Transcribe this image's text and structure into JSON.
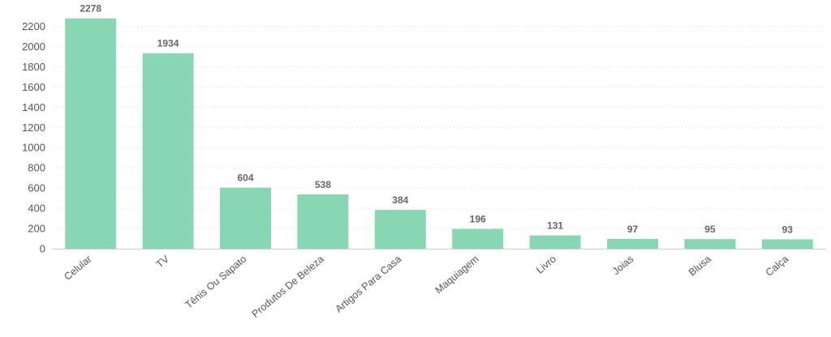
{
  "chart_data": {
    "type": "bar",
    "categories": [
      "Celular",
      "TV",
      "Tênis Ou Sapato",
      "Produtos De Beleza",
      "Artigos Para Casa",
      "Maquiagem",
      "Livro",
      "Joias",
      "Blusa",
      "Calça"
    ],
    "values": [
      2278,
      1934,
      604,
      538,
      384,
      196,
      131,
      97,
      95,
      93
    ],
    "ylim": [
      0,
      2300
    ],
    "yticks": [
      0,
      200,
      400,
      600,
      800,
      1000,
      1200,
      1400,
      1600,
      1800,
      2000,
      2200
    ],
    "title": "",
    "xlabel": "",
    "ylabel": "",
    "grid": true,
    "bar_color": "#88d6b3",
    "data_labels": true
  }
}
